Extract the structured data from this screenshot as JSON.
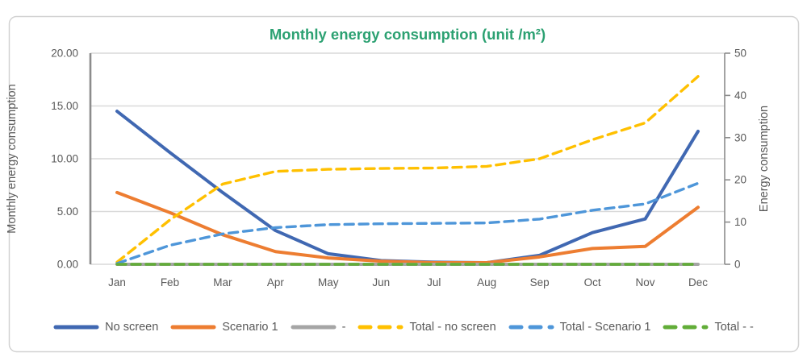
{
  "chart": {
    "text_color": "#595959",
    "grid_color": "#D9D9D9",
    "axis_line_color": "#8C8C8C",
    "border_color": "#D2D2D2",
    "background": "#FFFFFF",
    "title_color": "#2CA172"
  },
  "chart_data": {
    "type": "line",
    "title": "Monthly energy consumption (unit /m²)",
    "categories": [
      "Jan",
      "Feb",
      "Mar",
      "Apr",
      "May",
      "Jun",
      "Jul",
      "Aug",
      "Sep",
      "Oct",
      "Nov",
      "Dec"
    ],
    "left_axis": {
      "label": "Monthly energy consumption",
      "min": 0,
      "max": 20,
      "tick_step": 5,
      "tick_labels": [
        "0.00",
        "5.00",
        "10.00",
        "15.00",
        "20.00"
      ]
    },
    "right_axis": {
      "label": "Energy consumption",
      "min": 0,
      "max": 50,
      "tick_step": 10,
      "tick_labels": [
        "0",
        "10",
        "20",
        "30",
        "40",
        "50"
      ]
    },
    "grid": true,
    "legend_position": "bottom",
    "series": [
      {
        "name": "No screen",
        "axis": "left",
        "line": "solid",
        "color": "#4068B2",
        "values": [
          14.5,
          10.6,
          6.8,
          3.2,
          1.0,
          0.35,
          0.2,
          0.15,
          0.85,
          3.0,
          4.3,
          12.6
        ]
      },
      {
        "name": "Scenario 1",
        "axis": "left",
        "line": "solid",
        "color": "#ED7D31",
        "values": [
          6.8,
          4.9,
          2.8,
          1.2,
          0.6,
          0.3,
          0.15,
          0.15,
          0.7,
          1.5,
          1.7,
          5.4
        ]
      },
      {
        "name": "-",
        "axis": "left",
        "line": "solid",
        "color": "#A5A5A5",
        "values": [
          0,
          0,
          0,
          0,
          0,
          0,
          0,
          0,
          0,
          0,
          0,
          0
        ]
      },
      {
        "name": "Total - no screen",
        "axis": "right",
        "line": "dashed",
        "color": "#FFC000",
        "values": [
          0.5,
          10.5,
          19.0,
          22.0,
          22.5,
          22.7,
          22.8,
          23.2,
          25.0,
          29.5,
          33.5,
          44.5
        ]
      },
      {
        "name": "Total - Scenario 1",
        "axis": "right",
        "line": "dashed",
        "color": "#4E96D9",
        "values": [
          0.2,
          4.5,
          7.2,
          8.7,
          9.4,
          9.6,
          9.7,
          9.8,
          10.7,
          12.8,
          14.3,
          19.2
        ]
      },
      {
        "name": "Total - -",
        "axis": "right",
        "line": "dashed",
        "color": "#62AD38",
        "values": [
          0,
          0,
          0,
          0,
          0,
          0,
          0,
          0,
          0,
          0,
          0,
          0
        ]
      }
    ]
  }
}
